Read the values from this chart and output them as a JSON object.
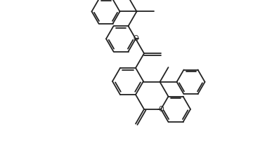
{
  "background_color": "#ffffff",
  "line_color": "#222222",
  "line_width": 1.3,
  "fig_width": 3.6,
  "fig_height": 2.34,
  "dpi": 100
}
